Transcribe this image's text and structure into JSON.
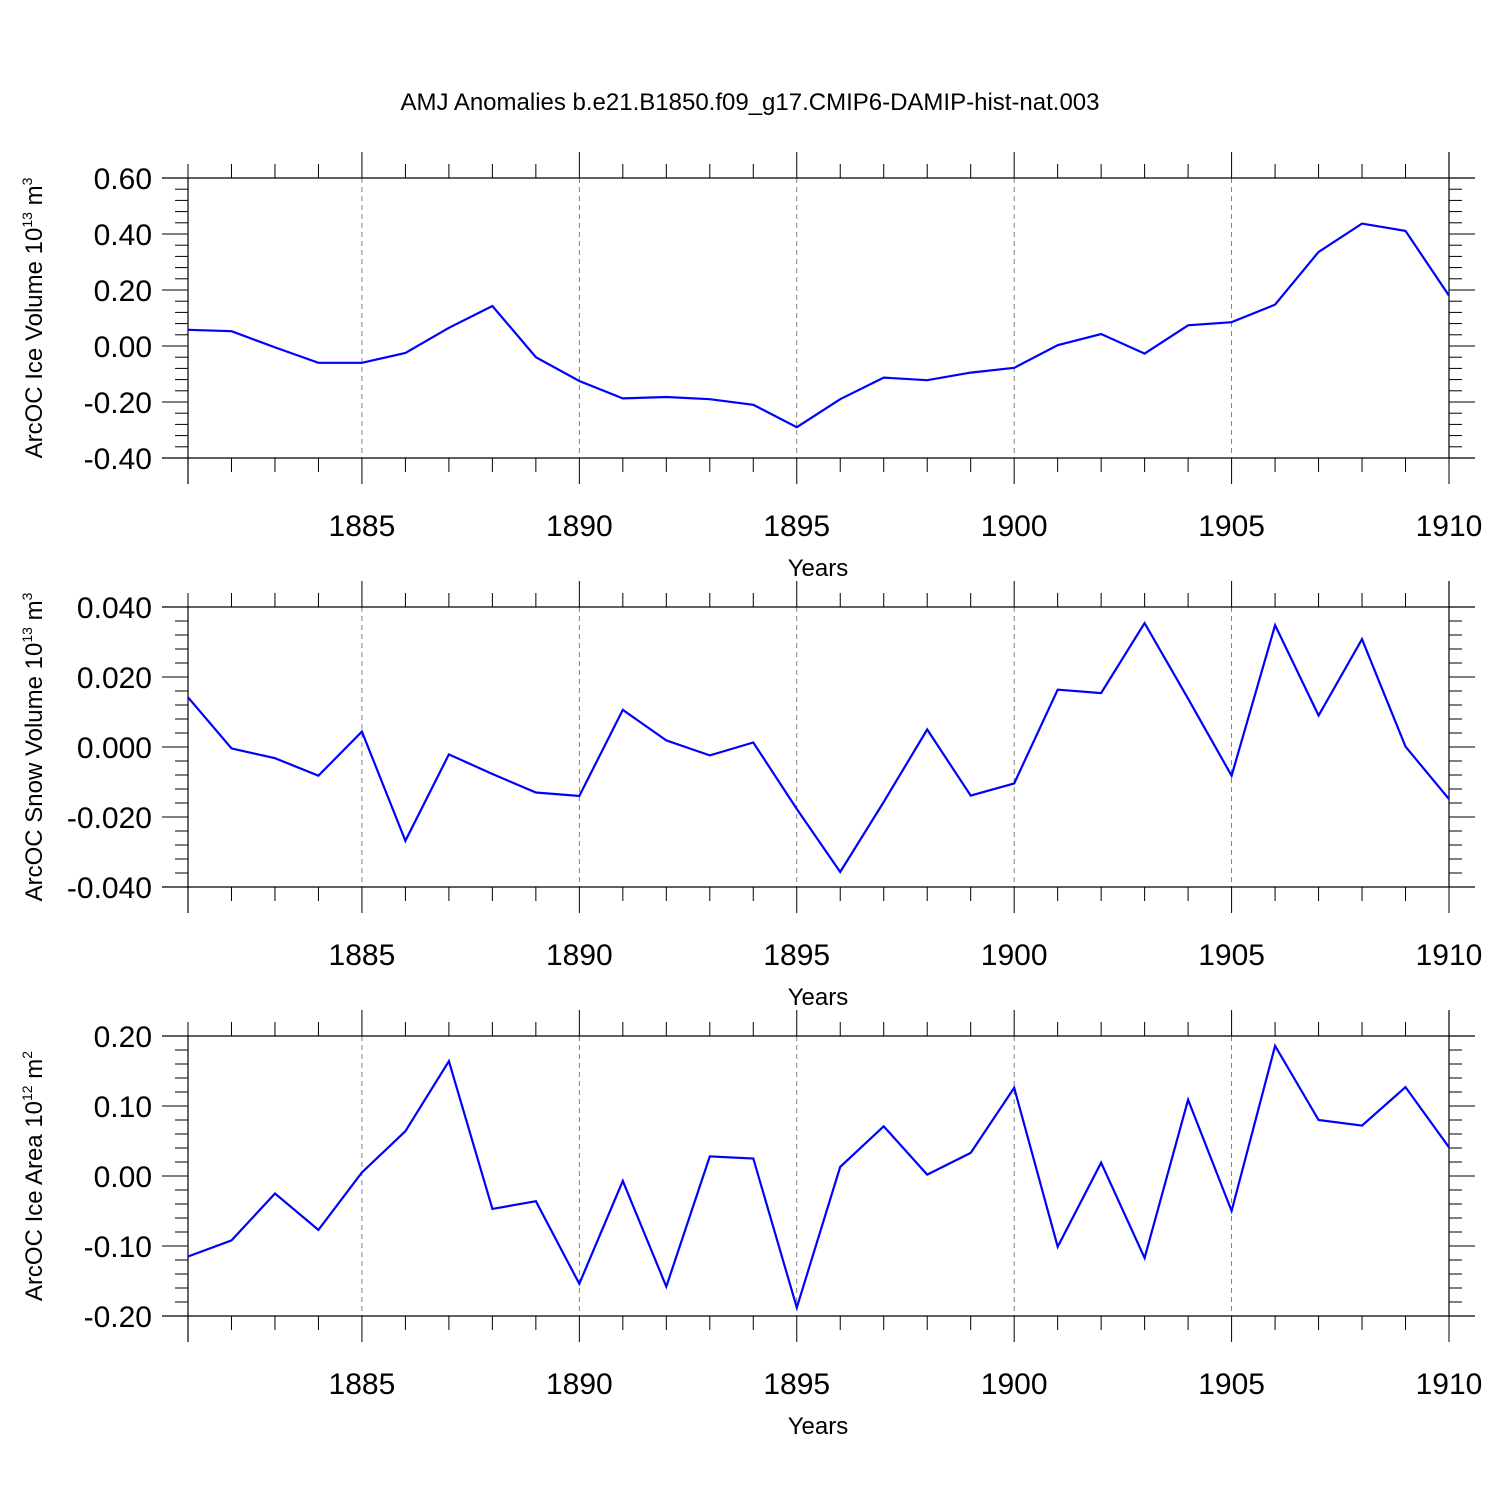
{
  "title": "AMJ Anomalies b.e21.B1850.f09_g17.CMIP6-DAMIP-hist-nat.003",
  "line_color": "#0000ff",
  "chart_data": [
    {
      "type": "line",
      "title": "AMJ Anomalies b.e21.B1850.f09_g17.CMIP6-DAMIP-hist-nat.003",
      "xlabel": "Years",
      "ylabel": {
        "prefix": "ArcOC Ice Volume 10",
        "exp": "13",
        "unit": " m",
        "unit_exp": "3"
      },
      "xlim": [
        1881,
        1910
      ],
      "ylim": [
        -0.4,
        0.6
      ],
      "yticks": [
        "0.60",
        "0.40",
        "0.20",
        "0.00",
        "-0.20",
        "-0.40"
      ],
      "ytick_values": [
        0.6,
        0.4,
        0.2,
        0.0,
        -0.2,
        -0.4
      ],
      "xticks": [
        "1885",
        "1890",
        "1895",
        "1900",
        "1905",
        "1910"
      ],
      "xtick_values": [
        1885,
        1890,
        1895,
        1900,
        1905,
        1910
      ],
      "grid": "vertical dashed at major x ticks",
      "series": [
        {
          "x": [
            1881,
            1882,
            1883,
            1884,
            1885,
            1886,
            1887,
            1888,
            1889,
            1890,
            1891,
            1892,
            1893,
            1894,
            1895,
            1896,
            1897,
            1898,
            1899,
            1900,
            1901,
            1902,
            1903,
            1904,
            1905,
            1906,
            1907,
            1908,
            1909,
            1910
          ],
          "values": [
            0.058,
            0.053,
            -0.005,
            -0.06,
            -0.06,
            -0.025,
            0.065,
            0.143,
            -0.04,
            -0.125,
            -0.187,
            -0.182,
            -0.19,
            -0.21,
            -0.29,
            -0.19,
            -0.113,
            -0.122,
            -0.095,
            -0.078,
            0.003,
            0.043,
            -0.027,
            0.074,
            0.085,
            0.148,
            0.336,
            0.437,
            0.411,
            0.18
          ]
        }
      ]
    },
    {
      "type": "line",
      "xlabel": "Years",
      "ylabel": {
        "prefix": "ArcOC Snow Volume 10",
        "exp": "13",
        "unit": " m",
        "unit_exp": "3"
      },
      "xlim": [
        1881,
        1910
      ],
      "ylim": [
        -0.04,
        0.04
      ],
      "yticks": [
        "0.040",
        "0.020",
        "0.000",
        "-0.020",
        "-0.040"
      ],
      "ytick_values": [
        0.04,
        0.02,
        0.0,
        -0.02,
        -0.04
      ],
      "xticks": [
        "1885",
        "1890",
        "1895",
        "1900",
        "1905",
        "1910"
      ],
      "xtick_values": [
        1885,
        1890,
        1895,
        1900,
        1905,
        1910
      ],
      "grid": "vertical dashed at major x ticks",
      "series": [
        {
          "x": [
            1881,
            1882,
            1883,
            1884,
            1885,
            1886,
            1887,
            1888,
            1889,
            1890,
            1891,
            1892,
            1893,
            1894,
            1895,
            1896,
            1897,
            1898,
            1899,
            1900,
            1901,
            1902,
            1903,
            1904,
            1905,
            1906,
            1907,
            1908,
            1909,
            1910
          ],
          "values": [
            0.0142,
            -0.0004,
            -0.0032,
            -0.0082,
            0.0044,
            -0.0268,
            -0.0021,
            -0.0077,
            -0.013,
            -0.014,
            0.0106,
            0.0019,
            -0.0024,
            0.0013,
            -0.0177,
            -0.0357,
            -0.0157,
            0.005,
            -0.0139,
            -0.0104,
            0.0164,
            0.0154,
            0.0354,
            0.0138,
            -0.0082,
            0.0348,
            0.009,
            0.0308,
            0.0001,
            -0.0149
          ]
        }
      ]
    },
    {
      "type": "line",
      "xlabel": "Years",
      "ylabel": {
        "prefix": "ArcOC Ice Area 10",
        "exp": "12",
        "unit": " m",
        "unit_exp": "2"
      },
      "xlim": [
        1881,
        1910
      ],
      "ylim": [
        -0.2,
        0.2
      ],
      "yticks": [
        "0.20",
        "0.10",
        "0.00",
        "-0.10",
        "-0.20"
      ],
      "ytick_values": [
        0.2,
        0.1,
        0.0,
        -0.1,
        -0.2
      ],
      "xticks": [
        "1885",
        "1890",
        "1895",
        "1900",
        "1905",
        "1910"
      ],
      "xtick_values": [
        1885,
        1890,
        1895,
        1900,
        1905,
        1910
      ],
      "grid": "vertical dashed at major x ticks",
      "series": [
        {
          "x": [
            1881,
            1882,
            1883,
            1884,
            1885,
            1886,
            1887,
            1888,
            1889,
            1890,
            1891,
            1892,
            1893,
            1894,
            1895,
            1896,
            1897,
            1898,
            1899,
            1900,
            1901,
            1902,
            1903,
            1904,
            1905,
            1906,
            1907,
            1908,
            1909,
            1910
          ],
          "values": [
            -0.115,
            -0.092,
            -0.025,
            -0.077,
            0.005,
            0.064,
            0.164,
            -0.047,
            -0.036,
            -0.154,
            -0.007,
            -0.158,
            0.028,
            0.025,
            -0.188,
            0.013,
            0.071,
            0.002,
            0.033,
            0.126,
            -0.101,
            0.019,
            -0.117,
            0.109,
            -0.05,
            0.186,
            0.08,
            0.072,
            0.127,
            0.041
          ]
        }
      ]
    }
  ]
}
